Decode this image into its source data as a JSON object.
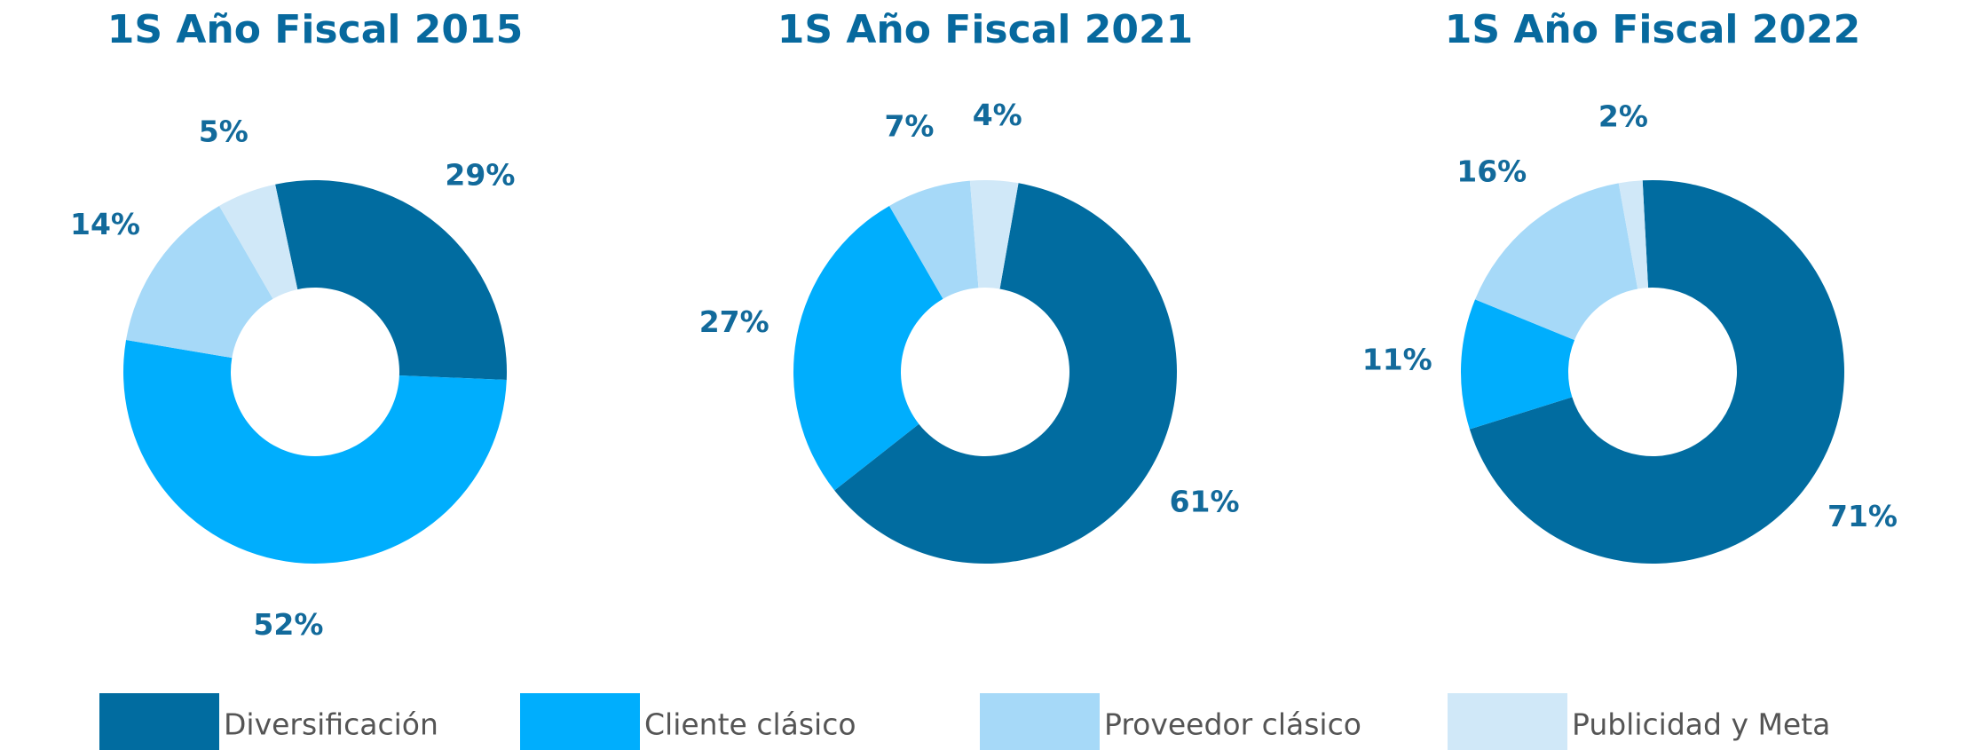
{
  "chart_data": [
    {
      "type": "pie",
      "title": "1S Año Fiscal 2015",
      "categories": [
        "Diversificación",
        "Cliente clásico",
        "Proveedor clásico",
        "Publicidad y Meta"
      ],
      "values": [
        29,
        52,
        14,
        5
      ],
      "value_labels": [
        "29%",
        "52%",
        "14%",
        "5%"
      ],
      "colors": [
        "#016ca0",
        "#00aefd",
        "#a6d9f8",
        "#d0e8f8"
      ],
      "legend": "bottom"
    },
    {
      "type": "pie",
      "title": "1S Año Fiscal 2021",
      "categories": [
        "Diversificación",
        "Cliente clásico",
        "Proveedor clásico",
        "Publicidad y Meta"
      ],
      "values": [
        61,
        27,
        7,
        4
      ],
      "value_labels": [
        "61%",
        "27%",
        "7%",
        "4%"
      ],
      "colors": [
        "#016ca0",
        "#00aefd",
        "#a6d9f8",
        "#d0e8f8"
      ],
      "legend": "bottom"
    },
    {
      "type": "pie",
      "title": "1S Año Fiscal 2022",
      "categories": [
        "Diversificación",
        "Cliente clásico",
        "Proveedor clásico",
        "Publicidad y Meta"
      ],
      "values": [
        71,
        11,
        16,
        2
      ],
      "value_labels": [
        "71%",
        "11%",
        "16%",
        "2%"
      ],
      "colors": [
        "#016ca0",
        "#00aefd",
        "#a6d9f8",
        "#d0e8f8"
      ],
      "legend": "bottom"
    }
  ]
}
